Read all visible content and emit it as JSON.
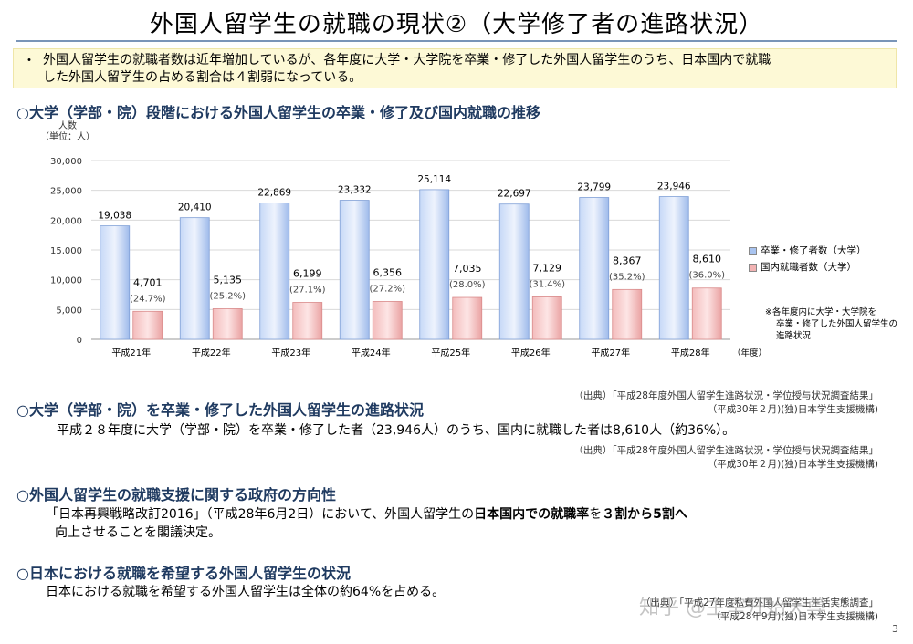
{
  "title": "外国人留学生の就職の現状②（大学修了者の進路状況）",
  "summary": {
    "bullet": "・",
    "line1": "外国人留学生の就職者数は近年増加しているが、各年度に大学・大学院を卒業・修了した外国人留学生のうち、日本国内で就職",
    "line2": "した外国人留学生の占める割合は４割弱になっている。"
  },
  "section1": {
    "heading": "○大学（学部・院）段階における外国人留学生の卒業・修了及び国内就職の推移",
    "unit_line1": "人数",
    "unit_line2": "（単位：人）",
    "source_line1": "（出典）「平成28年度外国人留学生進路状況・学位授与状況調査結果」",
    "source_line2": "（平成30年２月)(独)日本学生支援機構)"
  },
  "chart_data": {
    "type": "bar",
    "categories": [
      "平成21年",
      "平成22年",
      "平成23年",
      "平成24年",
      "平成25年",
      "平成26年",
      "平成27年",
      "平成28年"
    ],
    "xlabel": "（年度）",
    "ylabel": "",
    "ylim": [
      0,
      30000
    ],
    "yticks": [
      "0",
      "5,000",
      "10,000",
      "15,000",
      "20,000",
      "25,000",
      "30,000"
    ],
    "grid": true,
    "legend_position": "right",
    "series": [
      {
        "name": "卒業・修了者数（大学）",
        "color": "#a9c4f0",
        "values": [
          19038,
          20410,
          22869,
          23332,
          25114,
          22697,
          23799,
          23946
        ],
        "labels": [
          "19,038",
          "20,410",
          "22,869",
          "23,332",
          "25,114",
          "22,697",
          "23,799",
          "23,946"
        ]
      },
      {
        "name": "国内就職者数（大学）",
        "color": "#f2b3b3",
        "values": [
          4701,
          5135,
          6199,
          6356,
          7035,
          7129,
          8367,
          8610
        ],
        "labels": [
          "4,701",
          "5,135",
          "6,199",
          "6,356",
          "7,035",
          "7,129",
          "8,367",
          "8,610"
        ],
        "percent_labels": [
          "(24.7%)",
          "(25.2%)",
          "(27.1%)",
          "(27.2%)",
          "(28.0%)",
          "(31.4%)",
          "(35.2%)",
          "(36.0%)"
        ]
      }
    ],
    "note_lines": [
      "※各年度内に大学・大学院を",
      "卒業・修了した外国人留学生の",
      "進路状況"
    ]
  },
  "section2": {
    "heading": "○大学（学部・院）を卒業・修了した外国人留学生の進路状況",
    "body": "平成２８年度に大学（学部・院）を卒業・修了した者（23,946人）のうち、国内に就職した者は8,610人（約36%）。",
    "source_line1": "（出典）「平成28年度外国人留学生進路状況・学位授与状況調査結果」",
    "source_line2": "（平成30年２月)(独)日本学生支援機構)"
  },
  "section3": {
    "heading": "○外国人留学生の就職支援に関する政府の方向性",
    "body_part1": "「日本再興戦略改訂2016」（平成28年6月2日）において、外国人留学生の",
    "body_bold": "日本国内での就職率",
    "body_part2": "を",
    "body_bold2": "３割から5割へ",
    "body_line2": "向上させることを閣議決定。"
  },
  "section4": {
    "heading": "○日本における就職を希望する外国人留学生の状況",
    "body": "日本における就職を希望する外国人留学生は全体の約64%を占める。",
    "source_line1": "（出典）「平成27年度私費外国人留学生生活実態調査」",
    "source_line2": "（平成28年9月)(独)日本学生支援機構)"
  },
  "watermark": "知乎 @主宰开始天尊",
  "page_number": "3"
}
